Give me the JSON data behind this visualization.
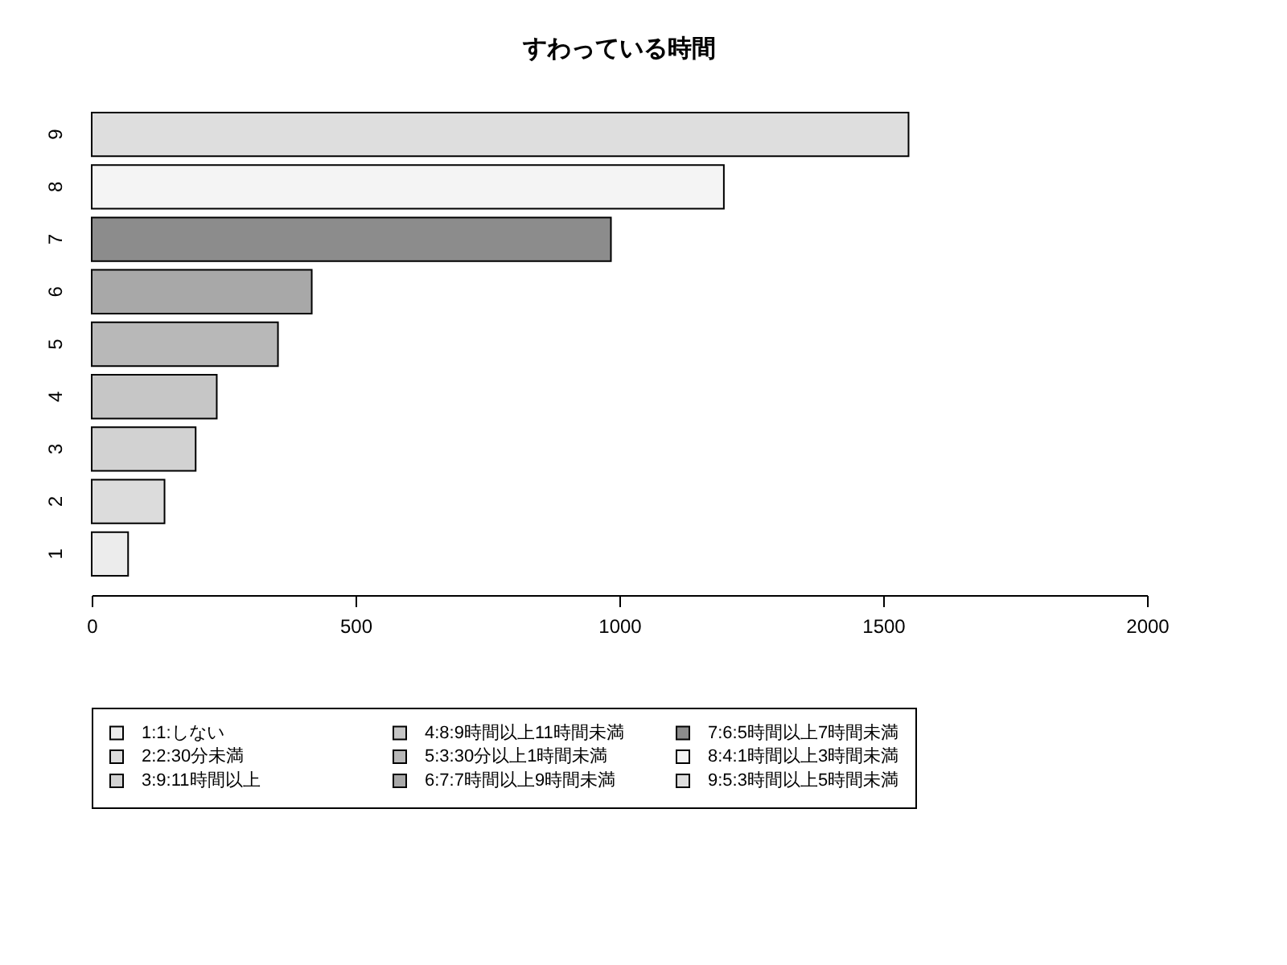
{
  "chart_data": {
    "type": "bar",
    "orientation": "horizontal",
    "title": "すわっている時間",
    "categories": [
      "9",
      "8",
      "7",
      "6",
      "5",
      "4",
      "3",
      "2",
      "1"
    ],
    "series": [
      {
        "name": "1:1:しない",
        "color": "#ececec",
        "values": [
          null,
          null,
          null,
          null,
          null,
          null,
          null,
          null,
          69
        ]
      },
      {
        "name": "2:2:30分未満",
        "color": "#dcdcdc",
        "values": [
          null,
          null,
          null,
          null,
          null,
          null,
          null,
          138,
          null
        ]
      },
      {
        "name": "3:9:11時間以上",
        "color": "#d2d2d2",
        "values": [
          null,
          null,
          null,
          null,
          null,
          null,
          197,
          null,
          null
        ]
      },
      {
        "name": "4:8:9時間以上11時間未満",
        "color": "#c6c6c6",
        "values": [
          null,
          null,
          null,
          null,
          null,
          237,
          null,
          null,
          null
        ]
      },
      {
        "name": "5:3:30分以上1時間未満",
        "color": "#b8b8b8",
        "values": [
          null,
          null,
          null,
          null,
          353,
          null,
          null,
          null,
          null
        ]
      },
      {
        "name": "6:7:7時間以上9時間未満",
        "color": "#a8a8a8",
        "values": [
          null,
          null,
          null,
          417,
          null,
          null,
          null,
          null,
          null
        ]
      },
      {
        "name": "7:6:5時間以上7時間未満",
        "color": "#8c8c8c",
        "values": [
          null,
          null,
          984,
          null,
          null,
          null,
          null,
          null,
          null
        ]
      },
      {
        "name": "8:4:1時間以上3時間未満",
        "color": "#f4f4f4",
        "values": [
          null,
          1198,
          null,
          null,
          null,
          null,
          null,
          null,
          null
        ]
      },
      {
        "name": "9:5:3時間以上5時間未満",
        "color": "#dedede",
        "values": [
          1548,
          null,
          null,
          null,
          null,
          null,
          null,
          null,
          null
        ]
      }
    ],
    "xlim": [
      0,
      2000
    ],
    "xticks": [
      0,
      500,
      1000,
      1500,
      2000
    ],
    "legend": "bottom"
  }
}
